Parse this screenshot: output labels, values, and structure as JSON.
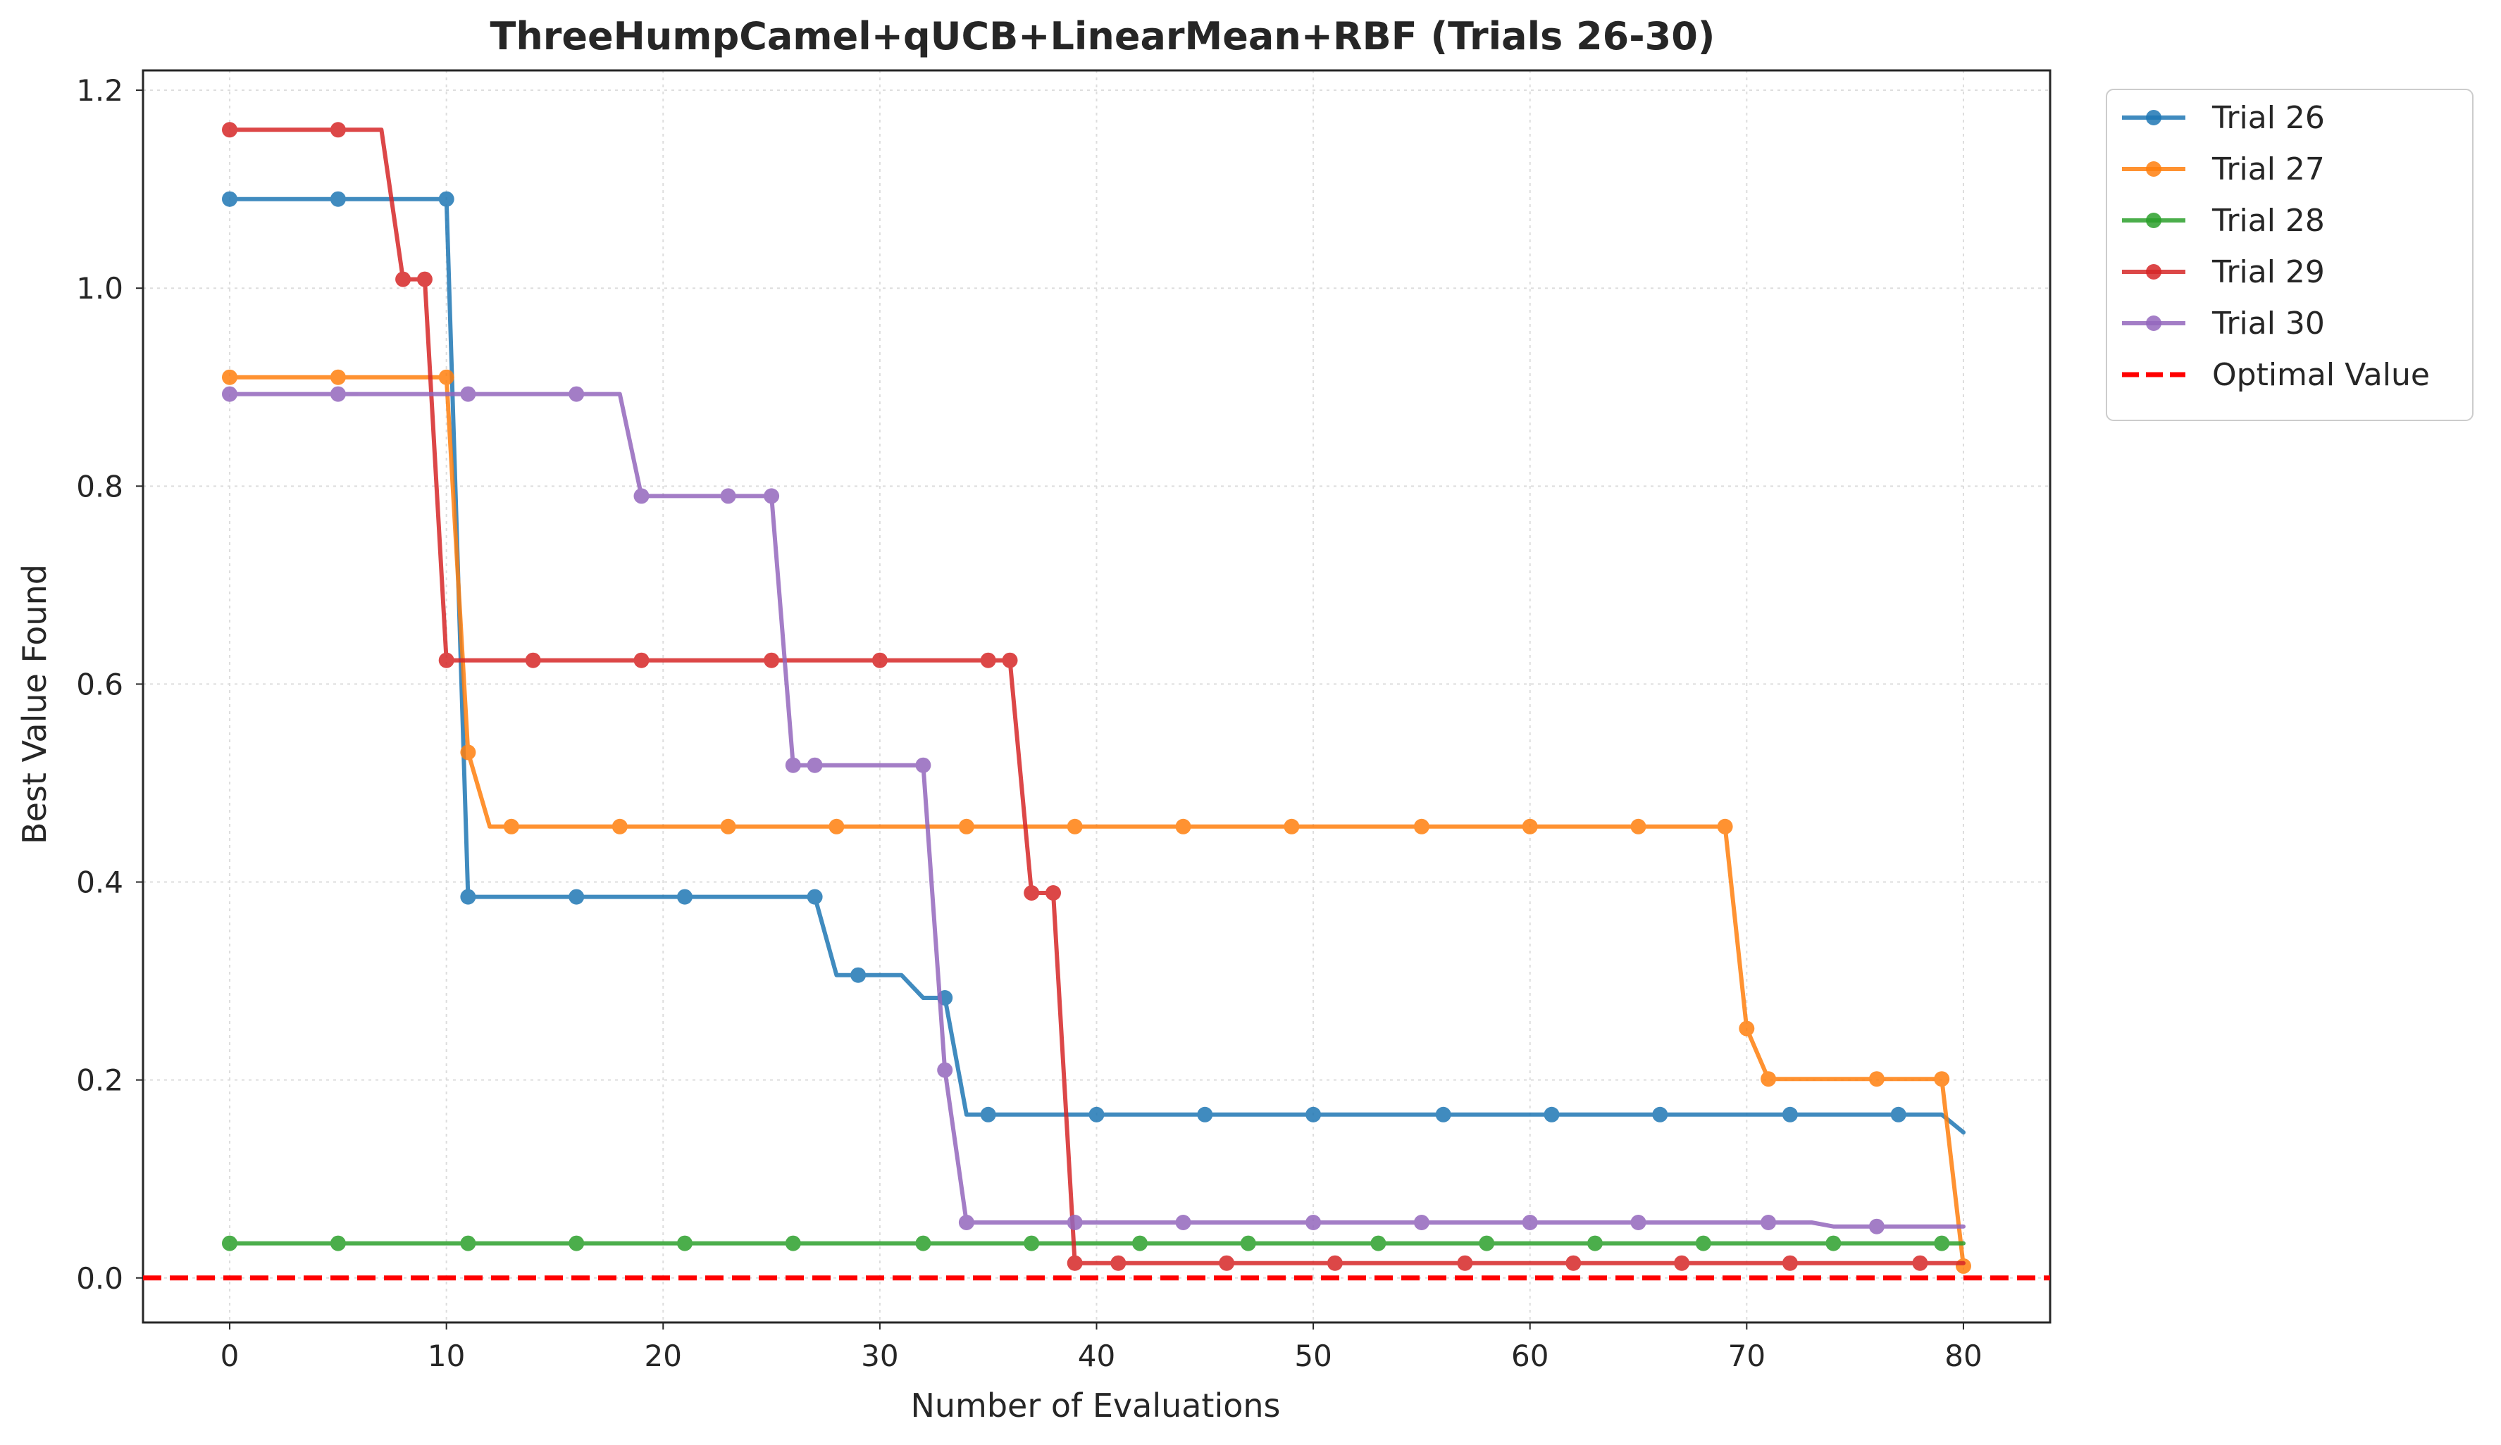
{
  "chart_data": {
    "type": "line",
    "title": "ThreeHumpCamel+qUCB+LinearMean+RBF (Trials 26-30)",
    "xlabel": "Number of Evaluations",
    "ylabel": "Best Value Found",
    "xlim": [
      -4,
      84
    ],
    "ylim": [
      -0.045,
      1.22
    ],
    "xticks": [
      "0",
      "10",
      "20",
      "30",
      "40",
      "50",
      "60",
      "70",
      "80"
    ],
    "yticks": [
      "0.0",
      "0.2",
      "0.4",
      "0.6",
      "0.8",
      "1.0",
      "1.2"
    ],
    "grid": true,
    "legend_position": "outside-top-right",
    "optimal_value": 0.0,
    "series": [
      {
        "name": "Trial 26",
        "color": "#1f77b4",
        "line": [
          [
            0,
            1.09
          ],
          [
            10,
            1.09
          ],
          [
            11,
            0.385
          ],
          [
            27,
            0.385
          ],
          [
            28,
            0.306
          ],
          [
            31,
            0.306
          ],
          [
            32,
            0.283
          ],
          [
            33,
            0.283
          ],
          [
            34,
            0.165
          ],
          [
            79,
            0.165
          ],
          [
            80,
            0.147
          ]
        ],
        "markers": [
          [
            0,
            1.09
          ],
          [
            5,
            1.09
          ],
          [
            10,
            1.09
          ],
          [
            11,
            0.385
          ],
          [
            16,
            0.385
          ],
          [
            21,
            0.385
          ],
          [
            27,
            0.385
          ],
          [
            29,
            0.306
          ],
          [
            33,
            0.283
          ],
          [
            35,
            0.165
          ],
          [
            40,
            0.165
          ],
          [
            45,
            0.165
          ],
          [
            50,
            0.165
          ],
          [
            56,
            0.165
          ],
          [
            61,
            0.165
          ],
          [
            66,
            0.165
          ],
          [
            72,
            0.165
          ],
          [
            77,
            0.165
          ]
        ]
      },
      {
        "name": "Trial 27",
        "color": "#ff7f0e",
        "line": [
          [
            0,
            0.91
          ],
          [
            10,
            0.91
          ],
          [
            11,
            0.531
          ],
          [
            12,
            0.456
          ],
          [
            69,
            0.456
          ],
          [
            70,
            0.252
          ],
          [
            71,
            0.201
          ],
          [
            79,
            0.201
          ],
          [
            80,
            0.012
          ]
        ],
        "markers": [
          [
            0,
            0.91
          ],
          [
            5,
            0.91
          ],
          [
            10,
            0.91
          ],
          [
            11,
            0.531
          ],
          [
            13,
            0.456
          ],
          [
            18,
            0.456
          ],
          [
            23,
            0.456
          ],
          [
            28,
            0.456
          ],
          [
            34,
            0.456
          ],
          [
            39,
            0.456
          ],
          [
            44,
            0.456
          ],
          [
            49,
            0.456
          ],
          [
            55,
            0.456
          ],
          [
            60,
            0.456
          ],
          [
            65,
            0.456
          ],
          [
            69,
            0.456
          ],
          [
            70,
            0.252
          ],
          [
            71,
            0.201
          ],
          [
            76,
            0.201
          ],
          [
            79,
            0.201
          ],
          [
            80,
            0.012
          ]
        ]
      },
      {
        "name": "Trial 28",
        "color": "#2ca02c",
        "line": [
          [
            0,
            0.035
          ],
          [
            80,
            0.035
          ]
        ],
        "markers": [
          [
            0,
            0.035
          ],
          [
            5,
            0.035
          ],
          [
            11,
            0.035
          ],
          [
            16,
            0.035
          ],
          [
            21,
            0.035
          ],
          [
            26,
            0.035
          ],
          [
            32,
            0.035
          ],
          [
            37,
            0.035
          ],
          [
            42,
            0.035
          ],
          [
            47,
            0.035
          ],
          [
            53,
            0.035
          ],
          [
            58,
            0.035
          ],
          [
            63,
            0.035
          ],
          [
            68,
            0.035
          ],
          [
            74,
            0.035
          ],
          [
            79,
            0.035
          ]
        ]
      },
      {
        "name": "Trial 29",
        "color": "#d62728",
        "line": [
          [
            0,
            1.16
          ],
          [
            7,
            1.16
          ],
          [
            8,
            1.009
          ],
          [
            9,
            1.009
          ],
          [
            10,
            0.624
          ],
          [
            36,
            0.624
          ],
          [
            37,
            0.389
          ],
          [
            38,
            0.389
          ],
          [
            39,
            0.015
          ],
          [
            80,
            0.015
          ]
        ],
        "markers": [
          [
            0,
            1.16
          ],
          [
            5,
            1.16
          ],
          [
            8,
            1.009
          ],
          [
            9,
            1.009
          ],
          [
            10,
            0.624
          ],
          [
            14,
            0.624
          ],
          [
            19,
            0.624
          ],
          [
            25,
            0.624
          ],
          [
            30,
            0.624
          ],
          [
            35,
            0.624
          ],
          [
            36,
            0.624
          ],
          [
            37,
            0.389
          ],
          [
            38,
            0.389
          ],
          [
            39,
            0.015
          ],
          [
            41,
            0.015
          ],
          [
            46,
            0.015
          ],
          [
            51,
            0.015
          ],
          [
            57,
            0.015
          ],
          [
            62,
            0.015
          ],
          [
            67,
            0.015
          ],
          [
            72,
            0.015
          ],
          [
            78,
            0.015
          ]
        ]
      },
      {
        "name": "Trial 30",
        "color": "#9467bd",
        "line": [
          [
            0,
            0.893
          ],
          [
            18,
            0.893
          ],
          [
            19,
            0.79
          ],
          [
            25,
            0.79
          ],
          [
            26,
            0.518
          ],
          [
            32,
            0.518
          ],
          [
            33,
            0.21
          ],
          [
            34,
            0.056
          ],
          [
            73,
            0.056
          ],
          [
            74,
            0.052
          ],
          [
            80,
            0.052
          ]
        ],
        "markers": [
          [
            0,
            0.893
          ],
          [
            5,
            0.893
          ],
          [
            11,
            0.893
          ],
          [
            16,
            0.893
          ],
          [
            19,
            0.79
          ],
          [
            23,
            0.79
          ],
          [
            25,
            0.79
          ],
          [
            26,
            0.518
          ],
          [
            27,
            0.518
          ],
          [
            32,
            0.518
          ],
          [
            33,
            0.21
          ],
          [
            34,
            0.056
          ],
          [
            39,
            0.056
          ],
          [
            44,
            0.056
          ],
          [
            50,
            0.056
          ],
          [
            55,
            0.056
          ],
          [
            60,
            0.056
          ],
          [
            65,
            0.056
          ],
          [
            71,
            0.056
          ],
          [
            76,
            0.052
          ]
        ]
      }
    ],
    "reference_lines": [
      {
        "name": "Optimal Value",
        "y": 0.0,
        "color": "#ff0000",
        "style": "dashed"
      }
    ]
  }
}
